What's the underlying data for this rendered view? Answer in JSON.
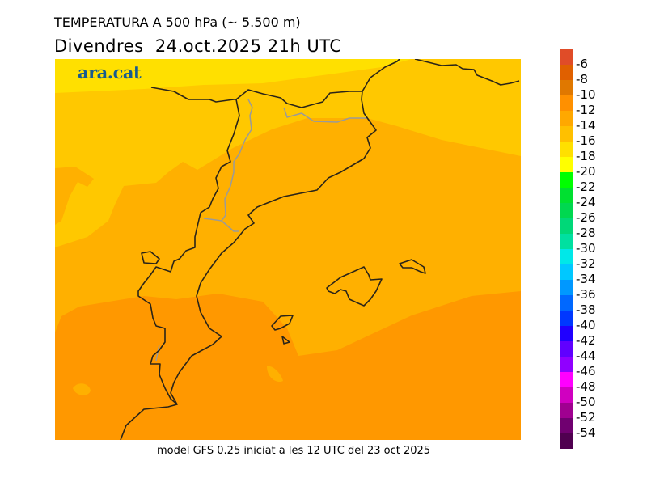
{
  "header": {
    "title": "TEMPERATURA A 500 hPa (~ 5.500 m)",
    "subtitle": "Divendres  24.oct.2025 21h UTC"
  },
  "logo": "ara.cat",
  "footer": "model GFS 0.25 iniciat a les 12 UTC del 23 oct 2025",
  "map_colors": {
    "band_minus18_20": "#ffe000",
    "band_minus16_18": "#ffc800",
    "band_minus14_16": "#ffb000",
    "band_minus12_14": "#ff9800",
    "coast": "#2a2418",
    "border": "#9a9a9a"
  },
  "colorbar": {
    "colors": [
      "#e04c28",
      "#e06000",
      "#e07800",
      "#ff9000",
      "#ffa800",
      "#ffc000",
      "#ffe000",
      "#ffff00",
      "#00ff00",
      "#00e030",
      "#00d850",
      "#00d878",
      "#00e0a0",
      "#00e8e8",
      "#00c8ff",
      "#0098ff",
      "#0068ff",
      "#0038ff",
      "#2000ff",
      "#6000ff",
      "#9000ff",
      "#ff00ff",
      "#d000c0",
      "#a00090",
      "#700070",
      "#500050"
    ],
    "labels": [
      "-6",
      "-8",
      "-10",
      "-12",
      "-14",
      "-16",
      "-18",
      "-20",
      "-22",
      "-24",
      "-26",
      "-28",
      "-30",
      "-32",
      "-34",
      "-36",
      "-38",
      "-40",
      "-42",
      "-44",
      "-46",
      "-48",
      "-50",
      "-52",
      "-54"
    ]
  }
}
